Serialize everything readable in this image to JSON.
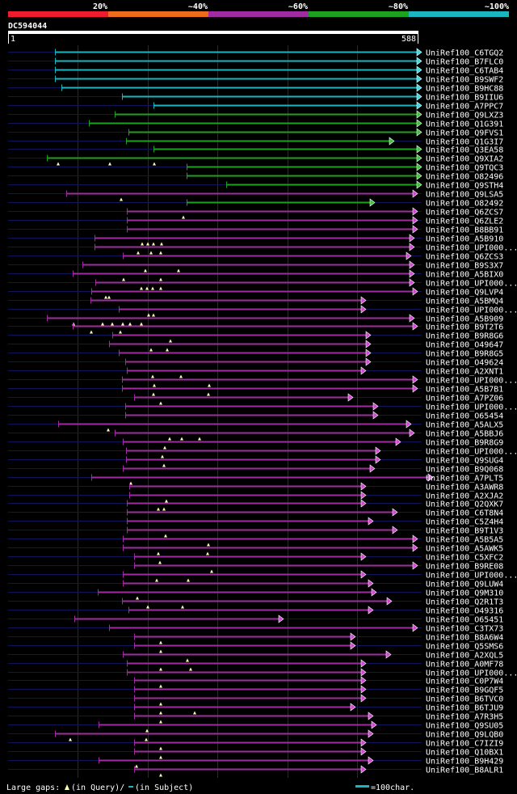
{
  "query": {
    "id": "DC594044",
    "start": "1",
    "end": "588",
    "length": 588
  },
  "identity_legend": [
    {
      "label": "20%",
      "color": "#ee1c2e"
    },
    {
      "label": "~40%",
      "color": "#ee6b1c"
    },
    {
      "label": "~60%",
      "color": "#a12ba1"
    },
    {
      "label": "~80%",
      "color": "#1ea11e"
    },
    {
      "label": "~100%",
      "color": "#19b6bf"
    }
  ],
  "footer": {
    "gaps_label": "Large gaps: ",
    "gaps_query": "(in Query)/",
    "gaps_subject": "(in Subject)",
    "scale_label": "=100char.",
    "scale_color": "#19b6bf"
  },
  "hits": [
    {
      "name": "UniRef100_C6TGQ2",
      "color": "cyan",
      "start": 68,
      "end": 516,
      "gaps": []
    },
    {
      "name": "UniRef100_B7FLC0",
      "color": "cyan",
      "start": 68,
      "end": 516,
      "gaps": []
    },
    {
      "name": "UniRef100_C6TAB4",
      "color": "cyan",
      "start": 68,
      "end": 516,
      "gaps": []
    },
    {
      "name": "UniRef100_B9SWF2",
      "color": "cyan",
      "start": 68,
      "end": 516,
      "gaps": []
    },
    {
      "name": "UniRef100_B9HC88",
      "color": "cyan",
      "start": 76,
      "end": 516,
      "gaps": []
    },
    {
      "name": "UniRef100_B9IIU6",
      "color": "cyan",
      "start": 151,
      "end": 516,
      "gaps": []
    },
    {
      "name": "UniRef100_A7PPC7",
      "color": "cyan",
      "start": 190,
      "end": 516,
      "gaps": []
    },
    {
      "name": "UniRef100_Q9LXZ3",
      "color": "green",
      "start": 142,
      "end": 516,
      "gaps": []
    },
    {
      "name": "UniRef100_Q1G391",
      "color": "green",
      "start": 110,
      "end": 516,
      "gaps": []
    },
    {
      "name": "UniRef100_Q9FVS1",
      "color": "green",
      "start": 159,
      "end": 516,
      "gaps": []
    },
    {
      "name": "UniRef100_Q1G3I7",
      "color": "green",
      "start": 156,
      "end": 482,
      "gaps": []
    },
    {
      "name": "UniRef100_Q3EA58",
      "color": "green",
      "start": 190,
      "end": 516,
      "gaps": []
    },
    {
      "name": "UniRef100_Q9XIA2",
      "color": "green",
      "start": 58,
      "end": 516,
      "gaps": [
        72,
        136,
        191
      ]
    },
    {
      "name": "UniRef100_Q9TQC3",
      "color": "green",
      "start": 231,
      "end": 516,
      "gaps": []
    },
    {
      "name": "UniRef100_O82496",
      "color": "green",
      "start": 231,
      "end": 516,
      "gaps": []
    },
    {
      "name": "UniRef100_Q9STH4",
      "color": "green",
      "start": 280,
      "end": 516,
      "gaps": []
    },
    {
      "name": "UniRef100_Q9LSA5",
      "color": "magenta",
      "start": 82,
      "end": 511,
      "gaps": [
        150
      ]
    },
    {
      "name": "UniRef100_O82492",
      "color": "green",
      "start": 231,
      "end": 458,
      "gaps": []
    },
    {
      "name": "UniRef100_Q6ZCS7",
      "color": "magenta",
      "start": 157,
      "end": 511,
      "gaps": [
        227
      ]
    },
    {
      "name": "UniRef100_Q6ZLE2",
      "color": "magenta",
      "start": 157,
      "end": 511,
      "gaps": []
    },
    {
      "name": "UniRef100_B8BB91",
      "color": "magenta",
      "start": 157,
      "end": 511,
      "gaps": []
    },
    {
      "name": "UniRef100_A5B910",
      "color": "magenta",
      "start": 117,
      "end": 507,
      "gaps": [
        176,
        183,
        190,
        200
      ]
    },
    {
      "name": "UniRef100_UPI000...",
      "color": "magenta",
      "start": 117,
      "end": 507,
      "gaps": [
        171,
        187,
        199
      ]
    },
    {
      "name": "UniRef100_Q6ZCS3",
      "color": "magenta",
      "start": 152,
      "end": 503,
      "gaps": []
    },
    {
      "name": "UniRef100_B9S3X7",
      "color": "magenta",
      "start": 102,
      "end": 507,
      "gaps": [
        180,
        221
      ]
    },
    {
      "name": "UniRef100_A5BIX0",
      "color": "magenta",
      "start": 90,
      "end": 507,
      "gaps": [
        153,
        199
      ]
    },
    {
      "name": "UniRef100_UPI000...",
      "color": "magenta",
      "start": 118,
      "end": 507,
      "gaps": [
        175,
        182,
        189,
        199
      ]
    },
    {
      "name": "UniRef100_Q9LVP4",
      "color": "magenta",
      "start": 113,
      "end": 511,
      "gaps": [
        131,
        135
      ]
    },
    {
      "name": "UniRef100_A5BMQ4",
      "color": "magenta",
      "start": 112,
      "end": 447,
      "gaps": []
    },
    {
      "name": "UniRef100_UPI000...",
      "color": "magenta",
      "start": 147,
      "end": 447,
      "gaps": [
        184,
        190
      ]
    },
    {
      "name": "UniRef100_A5B909",
      "color": "magenta",
      "start": 58,
      "end": 507,
      "gaps": [
        91,
        127,
        139,
        152,
        161,
        175
      ]
    },
    {
      "name": "UniRef100_B9T2T6",
      "color": "magenta",
      "start": 90,
      "end": 511,
      "gaps": [
        113,
        149
      ]
    },
    {
      "name": "UniRef100_B9R8G6",
      "color": "magenta",
      "start": 139,
      "end": 453,
      "gaps": [
        211
      ]
    },
    {
      "name": "UniRef100_O49647",
      "color": "magenta",
      "start": 135,
      "end": 453,
      "gaps": [
        187,
        207
      ]
    },
    {
      "name": "UniRef100_B9R8G5",
      "color": "magenta",
      "start": 147,
      "end": 453,
      "gaps": []
    },
    {
      "name": "UniRef100_O49624",
      "color": "magenta",
      "start": 155,
      "end": 453,
      "gaps": []
    },
    {
      "name": "UniRef100_A2XNT1",
      "color": "magenta",
      "start": 157,
      "end": 447,
      "gaps": [
        189,
        224
      ]
    },
    {
      "name": "UniRef100_UPI000...",
      "color": "magenta",
      "start": 151,
      "end": 511,
      "gaps": [
        191,
        259
      ]
    },
    {
      "name": "UniRef100_A5B7B1",
      "color": "magenta",
      "start": 151,
      "end": 511,
      "gaps": [
        190,
        258
      ]
    },
    {
      "name": "UniRef100_A7PZ06",
      "color": "magenta",
      "start": 166,
      "end": 431,
      "gaps": [
        199
      ]
    },
    {
      "name": "UniRef100_UPI000...",
      "color": "magenta",
      "start": 155,
      "end": 462,
      "gaps": []
    },
    {
      "name": "UniRef100_O65454",
      "color": "magenta",
      "start": 155,
      "end": 462,
      "gaps": []
    },
    {
      "name": "UniRef100_A5ALX5",
      "color": "magenta",
      "start": 72,
      "end": 503,
      "gaps": [
        134
      ]
    },
    {
      "name": "UniRef100_A5BBJ6",
      "color": "magenta",
      "start": 142,
      "end": 507,
      "gaps": [
        210,
        225,
        247
      ]
    },
    {
      "name": "UniRef100_B9R8G9",
      "color": "magenta",
      "start": 152,
      "end": 490,
      "gaps": [
        204
      ]
    },
    {
      "name": "UniRef100_UPI000...",
      "color": "magenta",
      "start": 156,
      "end": 465,
      "gaps": [
        201
      ]
    },
    {
      "name": "UniRef100_Q9SUG4",
      "color": "magenta",
      "start": 156,
      "end": 465,
      "gaps": [
        203
      ]
    },
    {
      "name": "UniRef100_B9Q068",
      "color": "magenta",
      "start": 152,
      "end": 458,
      "gaps": []
    },
    {
      "name": "UniRef100_A7PLT5",
      "color": "magenta",
      "start": 113,
      "end": 530,
      "gaps": [
        162
      ]
    },
    {
      "name": "UniRef100_A3AWR8",
      "color": "magenta",
      "start": 160,
      "end": 447,
      "gaps": []
    },
    {
      "name": "UniRef100_A2XJA2",
      "color": "magenta",
      "start": 160,
      "end": 447,
      "gaps": [
        206
      ]
    },
    {
      "name": "UniRef100_Q2QXK7",
      "color": "magenta",
      "start": 157,
      "end": 447,
      "gaps": [
        196,
        203
      ]
    },
    {
      "name": "UniRef100_C6T8N4",
      "color": "magenta",
      "start": 157,
      "end": 486,
      "gaps": []
    },
    {
      "name": "UniRef100_C5Z4H4",
      "color": "magenta",
      "start": 157,
      "end": 456,
      "gaps": []
    },
    {
      "name": "UniRef100_B9T1V3",
      "color": "magenta",
      "start": 157,
      "end": 486,
      "gaps": [
        205
      ]
    },
    {
      "name": "UniRef100_A5B5A5",
      "color": "magenta",
      "start": 152,
      "end": 511,
      "gaps": [
        258
      ]
    },
    {
      "name": "UniRef100_A5AWK5",
      "color": "magenta",
      "start": 152,
      "end": 511,
      "gaps": [
        196,
        257
      ]
    },
    {
      "name": "UniRef100_C5XFC2",
      "color": "magenta",
      "start": 166,
      "end": 447,
      "gaps": [
        198
      ]
    },
    {
      "name": "UniRef100_B9RE08",
      "color": "magenta",
      "start": 166,
      "end": 511,
      "gaps": [
        262
      ]
    },
    {
      "name": "UniRef100_UPI000...",
      "color": "magenta",
      "start": 152,
      "end": 447,
      "gaps": [
        194,
        233
      ]
    },
    {
      "name": "UniRef100_Q9LUW4",
      "color": "magenta",
      "start": 152,
      "end": 456,
      "gaps": []
    },
    {
      "name": "UniRef100_Q9M310",
      "color": "magenta",
      "start": 121,
      "end": 460,
      "gaps": [
        170
      ]
    },
    {
      "name": "UniRef100_Q2R1T3",
      "color": "magenta",
      "start": 151,
      "end": 479,
      "gaps": [
        183,
        226
      ]
    },
    {
      "name": "UniRef100_O49316",
      "color": "magenta",
      "start": 159,
      "end": 456,
      "gaps": []
    },
    {
      "name": "UniRef100_O65451",
      "color": "magenta",
      "start": 92,
      "end": 345,
      "gaps": []
    },
    {
      "name": "UniRef100_C3TX73",
      "color": "magenta",
      "start": 135,
      "end": 511,
      "gaps": []
    },
    {
      "name": "UniRef100_B8A6W4",
      "color": "magenta",
      "start": 166,
      "end": 434,
      "gaps": [
        199
      ]
    },
    {
      "name": "UniRef100_Q5SMS6",
      "color": "magenta",
      "start": 166,
      "end": 434,
      "gaps": [
        199
      ]
    },
    {
      "name": "UniRef100_A2XQL5",
      "color": "magenta",
      "start": 152,
      "end": 478,
      "gaps": [
        232
      ]
    },
    {
      "name": "UniRef100_A0MF78",
      "color": "magenta",
      "start": 157,
      "end": 447,
      "gaps": [
        199,
        236
      ]
    },
    {
      "name": "UniRef100_UPI000...",
      "color": "magenta",
      "start": 157,
      "end": 447,
      "gaps": []
    },
    {
      "name": "UniRef100_C0P7W4",
      "color": "magenta",
      "start": 166,
      "end": 447,
      "gaps": [
        199
      ]
    },
    {
      "name": "UniRef100_B9GQF5",
      "color": "magenta",
      "start": 166,
      "end": 447,
      "gaps": []
    },
    {
      "name": "UniRef100_B6TVC0",
      "color": "magenta",
      "start": 166,
      "end": 447,
      "gaps": [
        199
      ]
    },
    {
      "name": "UniRef100_B6TJU9",
      "color": "magenta",
      "start": 166,
      "end": 434,
      "gaps": [
        199,
        241
      ]
    },
    {
      "name": "UniRef100_A7R3H5",
      "color": "magenta",
      "start": 166,
      "end": 456,
      "gaps": [
        199
      ]
    },
    {
      "name": "UniRef100_Q9SU05",
      "color": "magenta",
      "start": 122,
      "end": 460,
      "gaps": [
        182
      ]
    },
    {
      "name": "UniRef100_Q9LQB0",
      "color": "magenta",
      "start": 68,
      "end": 456,
      "gaps": [
        87,
        181
      ]
    },
    {
      "name": "UniRef100_C7IZI9",
      "color": "magenta",
      "start": 166,
      "end": 447,
      "gaps": [
        199
      ]
    },
    {
      "name": "UniRef100_Q10BX1",
      "color": "magenta",
      "start": 166,
      "end": 447,
      "gaps": [
        199
      ]
    },
    {
      "name": "UniRef100_B9H429",
      "color": "magenta",
      "start": 122,
      "end": 456,
      "gaps": [
        169
      ]
    },
    {
      "name": "UniRef100_B8ALR1",
      "color": "magenta",
      "start": 166,
      "end": 447,
      "gaps": [
        199
      ]
    }
  ]
}
